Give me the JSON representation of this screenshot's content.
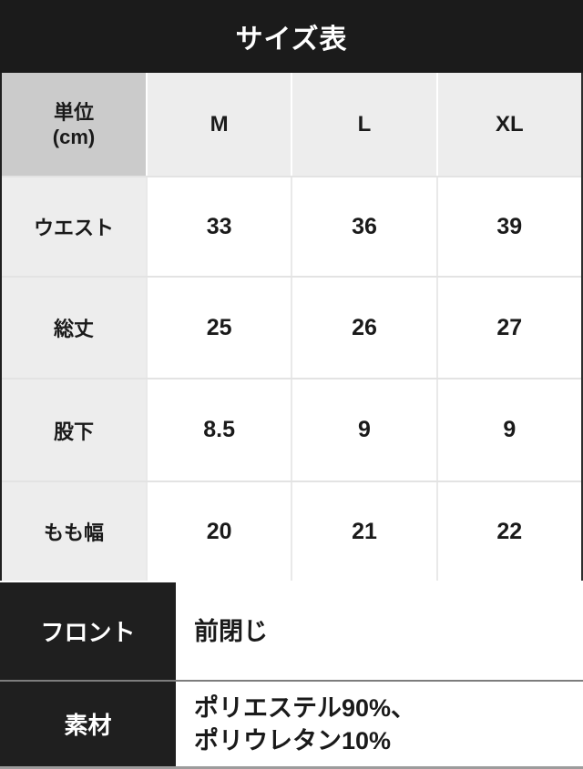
{
  "title": "サイズ表",
  "size_table": {
    "unit_label": "単位",
    "unit_sub": "(cm)",
    "columns": [
      "M",
      "L",
      "XL"
    ],
    "rows": [
      {
        "label": "ウエスト",
        "values": [
          "33",
          "36",
          "39"
        ]
      },
      {
        "label": "総丈",
        "values": [
          "25",
          "26",
          "27"
        ]
      },
      {
        "label": "股下",
        "values": [
          "8.5",
          "9",
          "9"
        ]
      },
      {
        "label": "もも幅",
        "values": [
          "20",
          "21",
          "22"
        ]
      }
    ]
  },
  "spec_table": {
    "rows": [
      {
        "label": "フロント",
        "value": "前閉じ"
      },
      {
        "label": "素材",
        "value_line1": "ポリエステル90%、",
        "value_line2": "ポリウレタン10%"
      }
    ]
  },
  "colors": {
    "header_bar_bg": "#1b1b1b",
    "unit_cell_bg": "#cbcbcb",
    "label_cell_bg": "#ededed",
    "value_cell_bg": "#ffffff",
    "grid_line": "#e3e3e3",
    "spec_label_bg": "#1f1f1f",
    "spec_separator": "#7d7d7d",
    "text_dark": "#1a1a1a",
    "text_white": "#ffffff"
  },
  "chart_data": {
    "type": "table",
    "title": "サイズ表",
    "unit": "cm",
    "columns": [
      "M",
      "L",
      "XL"
    ],
    "row_headers": [
      "ウエスト",
      "総丈",
      "股下",
      "もも幅"
    ],
    "values": [
      [
        33,
        36,
        39
      ],
      [
        25,
        26,
        27
      ],
      [
        8.5,
        9,
        9
      ],
      [
        20,
        21,
        22
      ]
    ],
    "extra_rows": [
      {
        "label": "フロント",
        "value": "前閉じ"
      },
      {
        "label": "素材",
        "value": "ポリエステル90%、ポリウレタン10%"
      }
    ]
  }
}
